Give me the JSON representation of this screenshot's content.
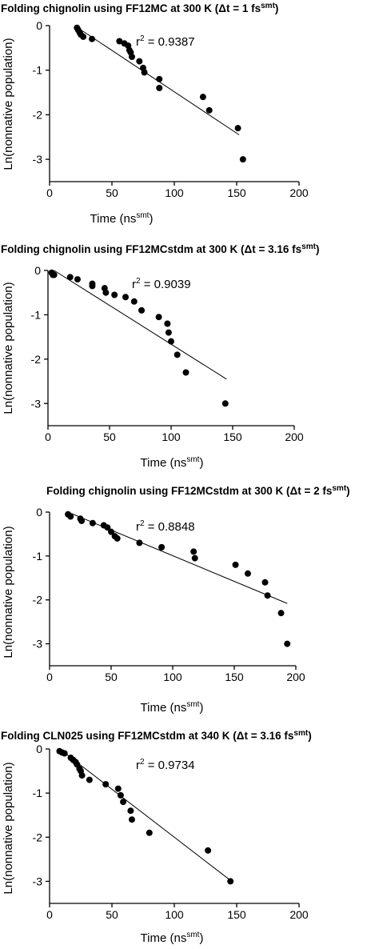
{
  "chart_data": [
    {
      "type": "scatter",
      "title": {
        "pre": "Folding chignolin using FF12MC at 300 K (",
        "delta": "Δ",
        "mid": "t = 1 fs",
        "sup": "smt",
        "post": ")"
      },
      "xlabel": {
        "main": "Time (ns",
        "sup": "smt",
        "post": ")"
      },
      "ylabel": "Ln(nonnative population)",
      "annotation": {
        "r": "r",
        "sup": "2",
        "text": " = 0.9387"
      },
      "xlim": [
        0,
        200
      ],
      "ylim": [
        -3.5,
        0
      ],
      "xticks": [
        "0",
        "50",
        "100",
        "150",
        "200"
      ],
      "yticks": [
        "0",
        "-1",
        "-2",
        "-3"
      ],
      "fit": {
        "x": [
          20,
          152
        ],
        "y": [
          0.0,
          -2.45
        ]
      },
      "points": [
        [
          22,
          -0.05
        ],
        [
          23,
          -0.1
        ],
        [
          24,
          -0.15
        ],
        [
          25,
          -0.2
        ],
        [
          27,
          -0.25
        ],
        [
          34,
          -0.3
        ],
        [
          56,
          -0.35
        ],
        [
          60,
          -0.4
        ],
        [
          63,
          -0.45
        ],
        [
          64,
          -0.55
        ],
        [
          65,
          -0.6
        ],
        [
          66,
          -0.7
        ],
        [
          72,
          -0.8
        ],
        [
          75,
          -0.95
        ],
        [
          76,
          -1.05
        ],
        [
          88,
          -1.2
        ],
        [
          88,
          -1.4
        ],
        [
          123,
          -1.6
        ],
        [
          128,
          -1.9
        ],
        [
          151,
          -2.3
        ],
        [
          155,
          -3.0
        ]
      ]
    },
    {
      "type": "scatter",
      "title": {
        "pre": "Folding chignolin using FF12MCstdm at 300 K (",
        "delta": "Δ",
        "mid": "t = 3.16 fs",
        "sup": "smt",
        "post": ")"
      },
      "xlabel": {
        "main": "Time (ns",
        "sup": "smt",
        "post": ")"
      },
      "ylabel": "Ln(nonnative population)",
      "annotation": {
        "r": "r",
        "sup": "2",
        "text": " = 0.9039"
      },
      "xlim": [
        0,
        200
      ],
      "ylim": [
        -3.5,
        0
      ],
      "xticks": [
        "0",
        "50",
        "100",
        "150",
        "200"
      ],
      "yticks": [
        "0",
        "-1",
        "-2",
        "-3"
      ],
      "fit": {
        "x": [
          5,
          145
        ],
        "y": [
          0.0,
          -2.45
        ]
      },
      "points": [
        [
          3,
          -0.05
        ],
        [
          4,
          -0.1
        ],
        [
          5,
          -0.1
        ],
        [
          18,
          -0.15
        ],
        [
          24,
          -0.2
        ],
        [
          36,
          -0.3
        ],
        [
          36,
          -0.35
        ],
        [
          46,
          -0.4
        ],
        [
          47,
          -0.5
        ],
        [
          54,
          -0.55
        ],
        [
          63,
          -0.6
        ],
        [
          70,
          -0.7
        ],
        [
          76,
          -0.9
        ],
        [
          90,
          -1.05
        ],
        [
          97,
          -1.2
        ],
        [
          98,
          -1.4
        ],
        [
          100,
          -1.6
        ],
        [
          105,
          -1.9
        ],
        [
          112,
          -2.3
        ],
        [
          144,
          -3.0
        ]
      ]
    },
    {
      "type": "scatter",
      "title": {
        "pre": "Folding chignolin using FF12MCstdm at 300 K (",
        "delta": "Δ",
        "mid": "t = 2 fs",
        "sup": "smt",
        "post": ")"
      },
      "xlabel": {
        "main": "Time (ns",
        "sup": "smt",
        "post": ")"
      },
      "ylabel": "Ln(nonnative population)",
      "annotation": {
        "r": "r",
        "sup": "2",
        "text": " = 0.8848"
      },
      "xlim": [
        0,
        200
      ],
      "ylim": [
        -3.5,
        0
      ],
      "xticks": [
        "0",
        "50",
        "100",
        "150",
        "200"
      ],
      "yticks": [
        "0",
        "-1",
        "-2",
        "-3"
      ],
      "fit": {
        "x": [
          15,
          193
        ],
        "y": [
          0.0,
          -2.08
        ]
      },
      "points": [
        [
          15,
          -0.05
        ],
        [
          17,
          -0.1
        ],
        [
          25,
          -0.15
        ],
        [
          26,
          -0.2
        ],
        [
          35,
          -0.25
        ],
        [
          44,
          -0.3
        ],
        [
          47,
          -0.35
        ],
        [
          50,
          -0.45
        ],
        [
          53,
          -0.55
        ],
        [
          55,
          -0.6
        ],
        [
          73,
          -0.7
        ],
        [
          91,
          -0.8
        ],
        [
          117,
          -0.9
        ],
        [
          118,
          -1.05
        ],
        [
          151,
          -1.2
        ],
        [
          161,
          -1.4
        ],
        [
          175,
          -1.6
        ],
        [
          177,
          -1.9
        ],
        [
          188,
          -2.3
        ],
        [
          193,
          -3.0
        ]
      ]
    },
    {
      "type": "scatter",
      "title": {
        "pre": "Folding CLN025 using FF12MCstdm at 340 K (",
        "delta": "Δ",
        "mid": "t = 3.16 fs",
        "sup": "smt",
        "post": ")"
      },
      "xlabel": {
        "main": "Time (ns",
        "sup": "smt",
        "post": ")"
      },
      "ylabel": "Ln(nonnative population)",
      "annotation": {
        "r": "r",
        "sup": "2",
        "text": " = 0.9734"
      },
      "xlim": [
        0,
        200
      ],
      "ylim": [
        -3.5,
        0
      ],
      "xticks": [
        "0",
        "50",
        "100",
        "150",
        "200"
      ],
      "yticks": [
        "0",
        "-1",
        "-2",
        "-3"
      ],
      "fit": {
        "x": [
          8,
          146
        ],
        "y": [
          0.0,
          -3.0
        ]
      },
      "points": [
        [
          8,
          -0.05
        ],
        [
          10,
          -0.08
        ],
        [
          12,
          -0.1
        ],
        [
          17,
          -0.2
        ],
        [
          19,
          -0.25
        ],
        [
          21,
          -0.3
        ],
        [
          22,
          -0.35
        ],
        [
          24,
          -0.45
        ],
        [
          25,
          -0.5
        ],
        [
          26,
          -0.6
        ],
        [
          32,
          -0.7
        ],
        [
          45,
          -0.8
        ],
        [
          55,
          -0.9
        ],
        [
          57,
          -1.05
        ],
        [
          59,
          -1.2
        ],
        [
          65,
          -1.4
        ],
        [
          66,
          -1.6
        ],
        [
          80,
          -1.9
        ],
        [
          127,
          -2.3
        ],
        [
          145,
          -3.0
        ]
      ]
    }
  ]
}
